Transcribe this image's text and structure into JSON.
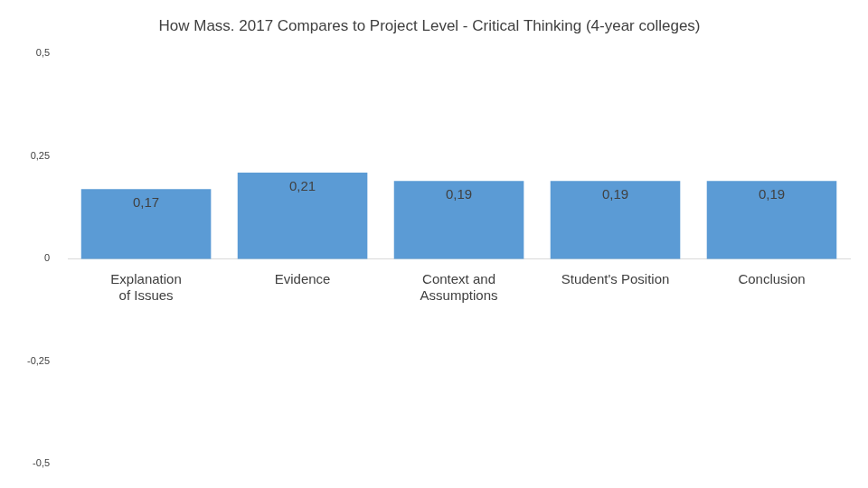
{
  "chart_data": {
    "type": "bar",
    "title": "How Mass. 2017 Compares to Project Level - Critical Thinking (4-year colleges)",
    "categories": [
      "Explanation of Issues",
      "Evidence",
      "Context and Assumptions",
      "Student's Position",
      "Conclusion"
    ],
    "values": [
      0.17,
      0.21,
      0.19,
      0.19,
      0.19
    ],
    "value_labels": [
      "0,17",
      "0,21",
      "0,19",
      "0,19",
      "0,19"
    ],
    "color": "#5b9bd5",
    "ylim": [
      -0.5,
      0.5
    ],
    "yticks": [
      {
        "value": -0.5,
        "label": "-0,5"
      },
      {
        "value": -0.25,
        "label": "-0,25"
      },
      0,
      {
        "value": 0.25,
        "label": "0,25"
      },
      {
        "value": 0.5,
        "label": "0,5"
      }
    ],
    "grid": false,
    "data_labels": true
  }
}
